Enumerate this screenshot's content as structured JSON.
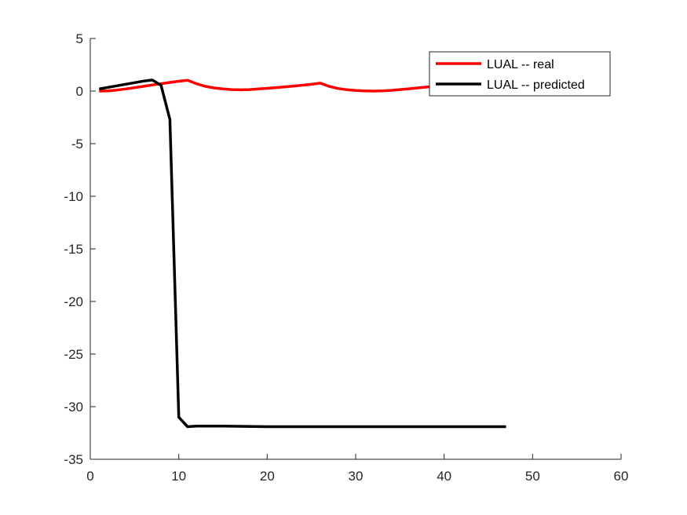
{
  "chart_data": {
    "type": "line",
    "title": "",
    "xlabel": "",
    "ylabel": "",
    "xlim": [
      0,
      60
    ],
    "ylim": [
      -35,
      5
    ],
    "xticks": [
      0,
      10,
      20,
      30,
      40,
      50,
      60
    ],
    "yticks": [
      5,
      0,
      -5,
      -10,
      -15,
      -20,
      -25,
      -30,
      -35
    ],
    "xtick_labels": [
      "0",
      "10",
      "20",
      "30",
      "40",
      "50",
      "60"
    ],
    "ytick_labels": [
      "5",
      "0",
      "-5",
      "-10",
      "-15",
      "-20",
      "-25",
      "-30",
      "-35"
    ],
    "grid": false,
    "legend_position": "top-right",
    "series": [
      {
        "name": "LUAL -- real",
        "color": "#ff0000",
        "x": [
          1,
          2,
          3,
          4,
          5,
          6,
          7,
          8,
          9,
          10,
          11,
          12,
          13,
          14,
          15,
          16,
          17,
          18,
          19,
          20,
          21,
          22,
          23,
          24,
          25,
          26,
          27,
          28,
          29,
          30,
          31,
          32,
          33,
          34,
          35,
          36,
          37,
          38,
          39,
          40,
          41,
          42,
          43,
          44,
          45,
          46,
          47
        ],
        "y": [
          0.0,
          0.02,
          0.1,
          0.2,
          0.32,
          0.45,
          0.58,
          0.7,
          0.82,
          0.93,
          1.02,
          0.7,
          0.45,
          0.3,
          0.2,
          0.14,
          0.12,
          0.14,
          0.2,
          0.26,
          0.33,
          0.4,
          0.48,
          0.56,
          0.64,
          0.75,
          0.45,
          0.25,
          0.13,
          0.06,
          0.02,
          0.0,
          0.02,
          0.07,
          0.14,
          0.22,
          0.3,
          0.38,
          0.45,
          0.52,
          0.58,
          0.63,
          0.67,
          0.7,
          0.72,
          0.74,
          0.75
        ]
      },
      {
        "name": "LUAL -- predicted",
        "color": "#000000",
        "x": [
          1,
          2,
          3,
          4,
          5,
          6,
          7,
          8,
          9,
          10,
          11,
          12,
          15,
          20,
          25,
          30,
          35,
          40,
          45,
          47
        ],
        "y": [
          0.2,
          0.35,
          0.5,
          0.65,
          0.8,
          0.95,
          1.05,
          0.55,
          -2.7,
          -31.0,
          -31.9,
          -31.85,
          -31.85,
          -31.9,
          -31.9,
          -31.9,
          -31.9,
          -31.9,
          -31.9,
          -31.9
        ]
      }
    ]
  }
}
